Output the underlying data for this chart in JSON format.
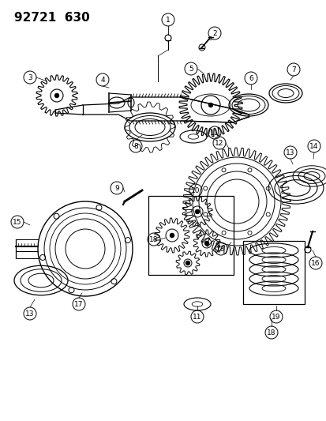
{
  "title": "92721  630",
  "bg_color": "#ffffff",
  "line_color": "#000000",
  "title_fontsize": 11,
  "fig_width": 4.14,
  "fig_height": 5.33,
  "dpi": 100
}
